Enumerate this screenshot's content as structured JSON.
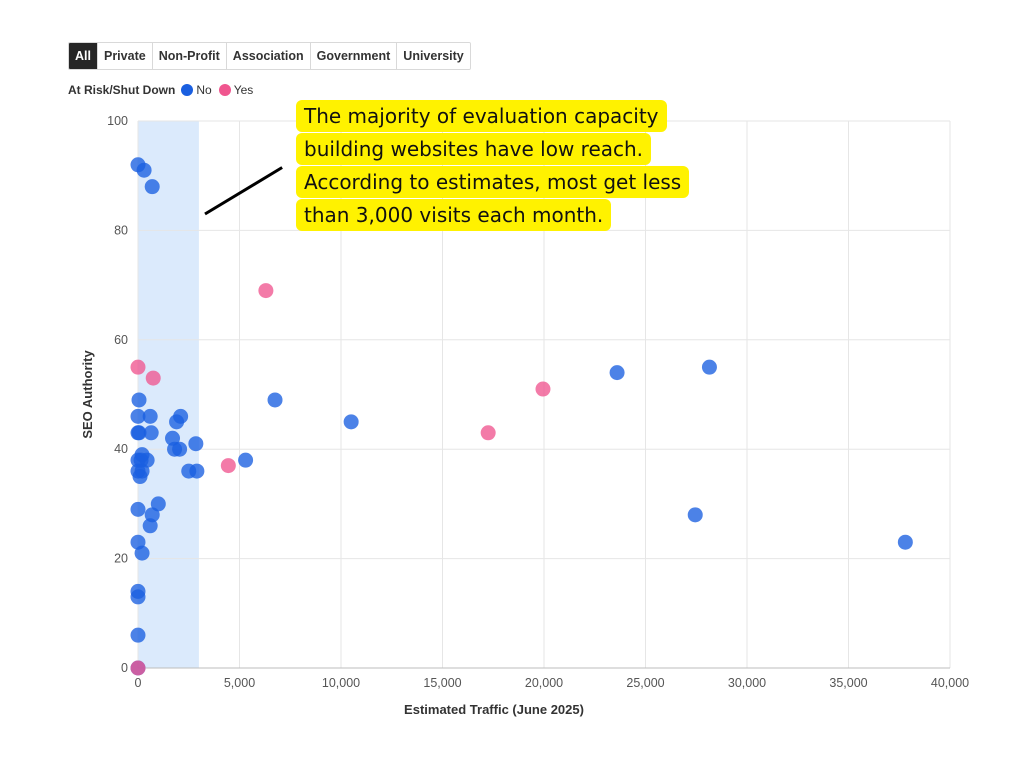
{
  "filters": {
    "tabs": [
      "All",
      "Private",
      "Non-Profit",
      "Association",
      "Government",
      "University"
    ],
    "active": "All"
  },
  "legend": {
    "title": "At Risk/Shut Down",
    "items": [
      {
        "label": "No",
        "color": "#1a5fe0"
      },
      {
        "label": "Yes",
        "color": "#f0568f"
      }
    ]
  },
  "annotation": {
    "lines": [
      "The majority of evaluation capacity",
      "building websites have low reach.",
      "According to estimates, most get less",
      "than 3,000 visits each month."
    ],
    "highlight_color": "#fff200"
  },
  "chart_data": {
    "type": "scatter",
    "xlabel": "Estimated Traffic (June 2025)",
    "ylabel": "SEO Authority",
    "xlim": [
      0,
      40000
    ],
    "ylim": [
      0,
      100
    ],
    "x_ticks": [
      0,
      5000,
      10000,
      15000,
      20000,
      25000,
      30000,
      35000,
      40000
    ],
    "x_tick_labels": [
      "0",
      "5,000",
      "10,000",
      "15,000",
      "20,000",
      "25,000",
      "30,000",
      "35,000",
      "40,000"
    ],
    "y_ticks": [
      0,
      20,
      40,
      60,
      80,
      100
    ],
    "y_tick_labels": [
      "0",
      "20",
      "40",
      "60",
      "80",
      "100"
    ],
    "grid": true,
    "highlight_band": {
      "x": [
        0,
        3000
      ],
      "color": "#dbeafc"
    },
    "series": [
      {
        "name": "No",
        "color": "#1a5fe0",
        "points": [
          [
            0,
            92
          ],
          [
            300,
            91
          ],
          [
            700,
            88
          ],
          [
            50,
            49
          ],
          [
            0,
            46
          ],
          [
            600,
            46
          ],
          [
            2100,
            46
          ],
          [
            1900,
            45
          ],
          [
            0,
            43
          ],
          [
            50,
            43
          ],
          [
            650,
            43
          ],
          [
            1700,
            42
          ],
          [
            2850,
            41
          ],
          [
            1800,
            40
          ],
          [
            2050,
            40
          ],
          [
            200,
            39
          ],
          [
            0,
            38
          ],
          [
            150,
            38
          ],
          [
            450,
            38
          ],
          [
            0,
            36
          ],
          [
            200,
            36
          ],
          [
            2500,
            36
          ],
          [
            2900,
            36
          ],
          [
            100,
            35
          ],
          [
            1000,
            30
          ],
          [
            0,
            29
          ],
          [
            700,
            28
          ],
          [
            600,
            26
          ],
          [
            0,
            23
          ],
          [
            200,
            21
          ],
          [
            0,
            14
          ],
          [
            0,
            13
          ],
          [
            0,
            6
          ],
          [
            0,
            0
          ],
          [
            5300,
            38
          ],
          [
            6750,
            49
          ],
          [
            10500,
            45
          ],
          [
            23600,
            54
          ],
          [
            28150,
            55
          ],
          [
            27450,
            28
          ],
          [
            37800,
            23
          ]
        ]
      },
      {
        "name": "Yes",
        "color": "#f0568f",
        "points": [
          [
            0,
            55
          ],
          [
            750,
            53
          ],
          [
            0,
            0
          ],
          [
            4450,
            37
          ],
          [
            6300,
            69
          ],
          [
            17250,
            43
          ],
          [
            19950,
            51
          ]
        ]
      }
    ]
  }
}
